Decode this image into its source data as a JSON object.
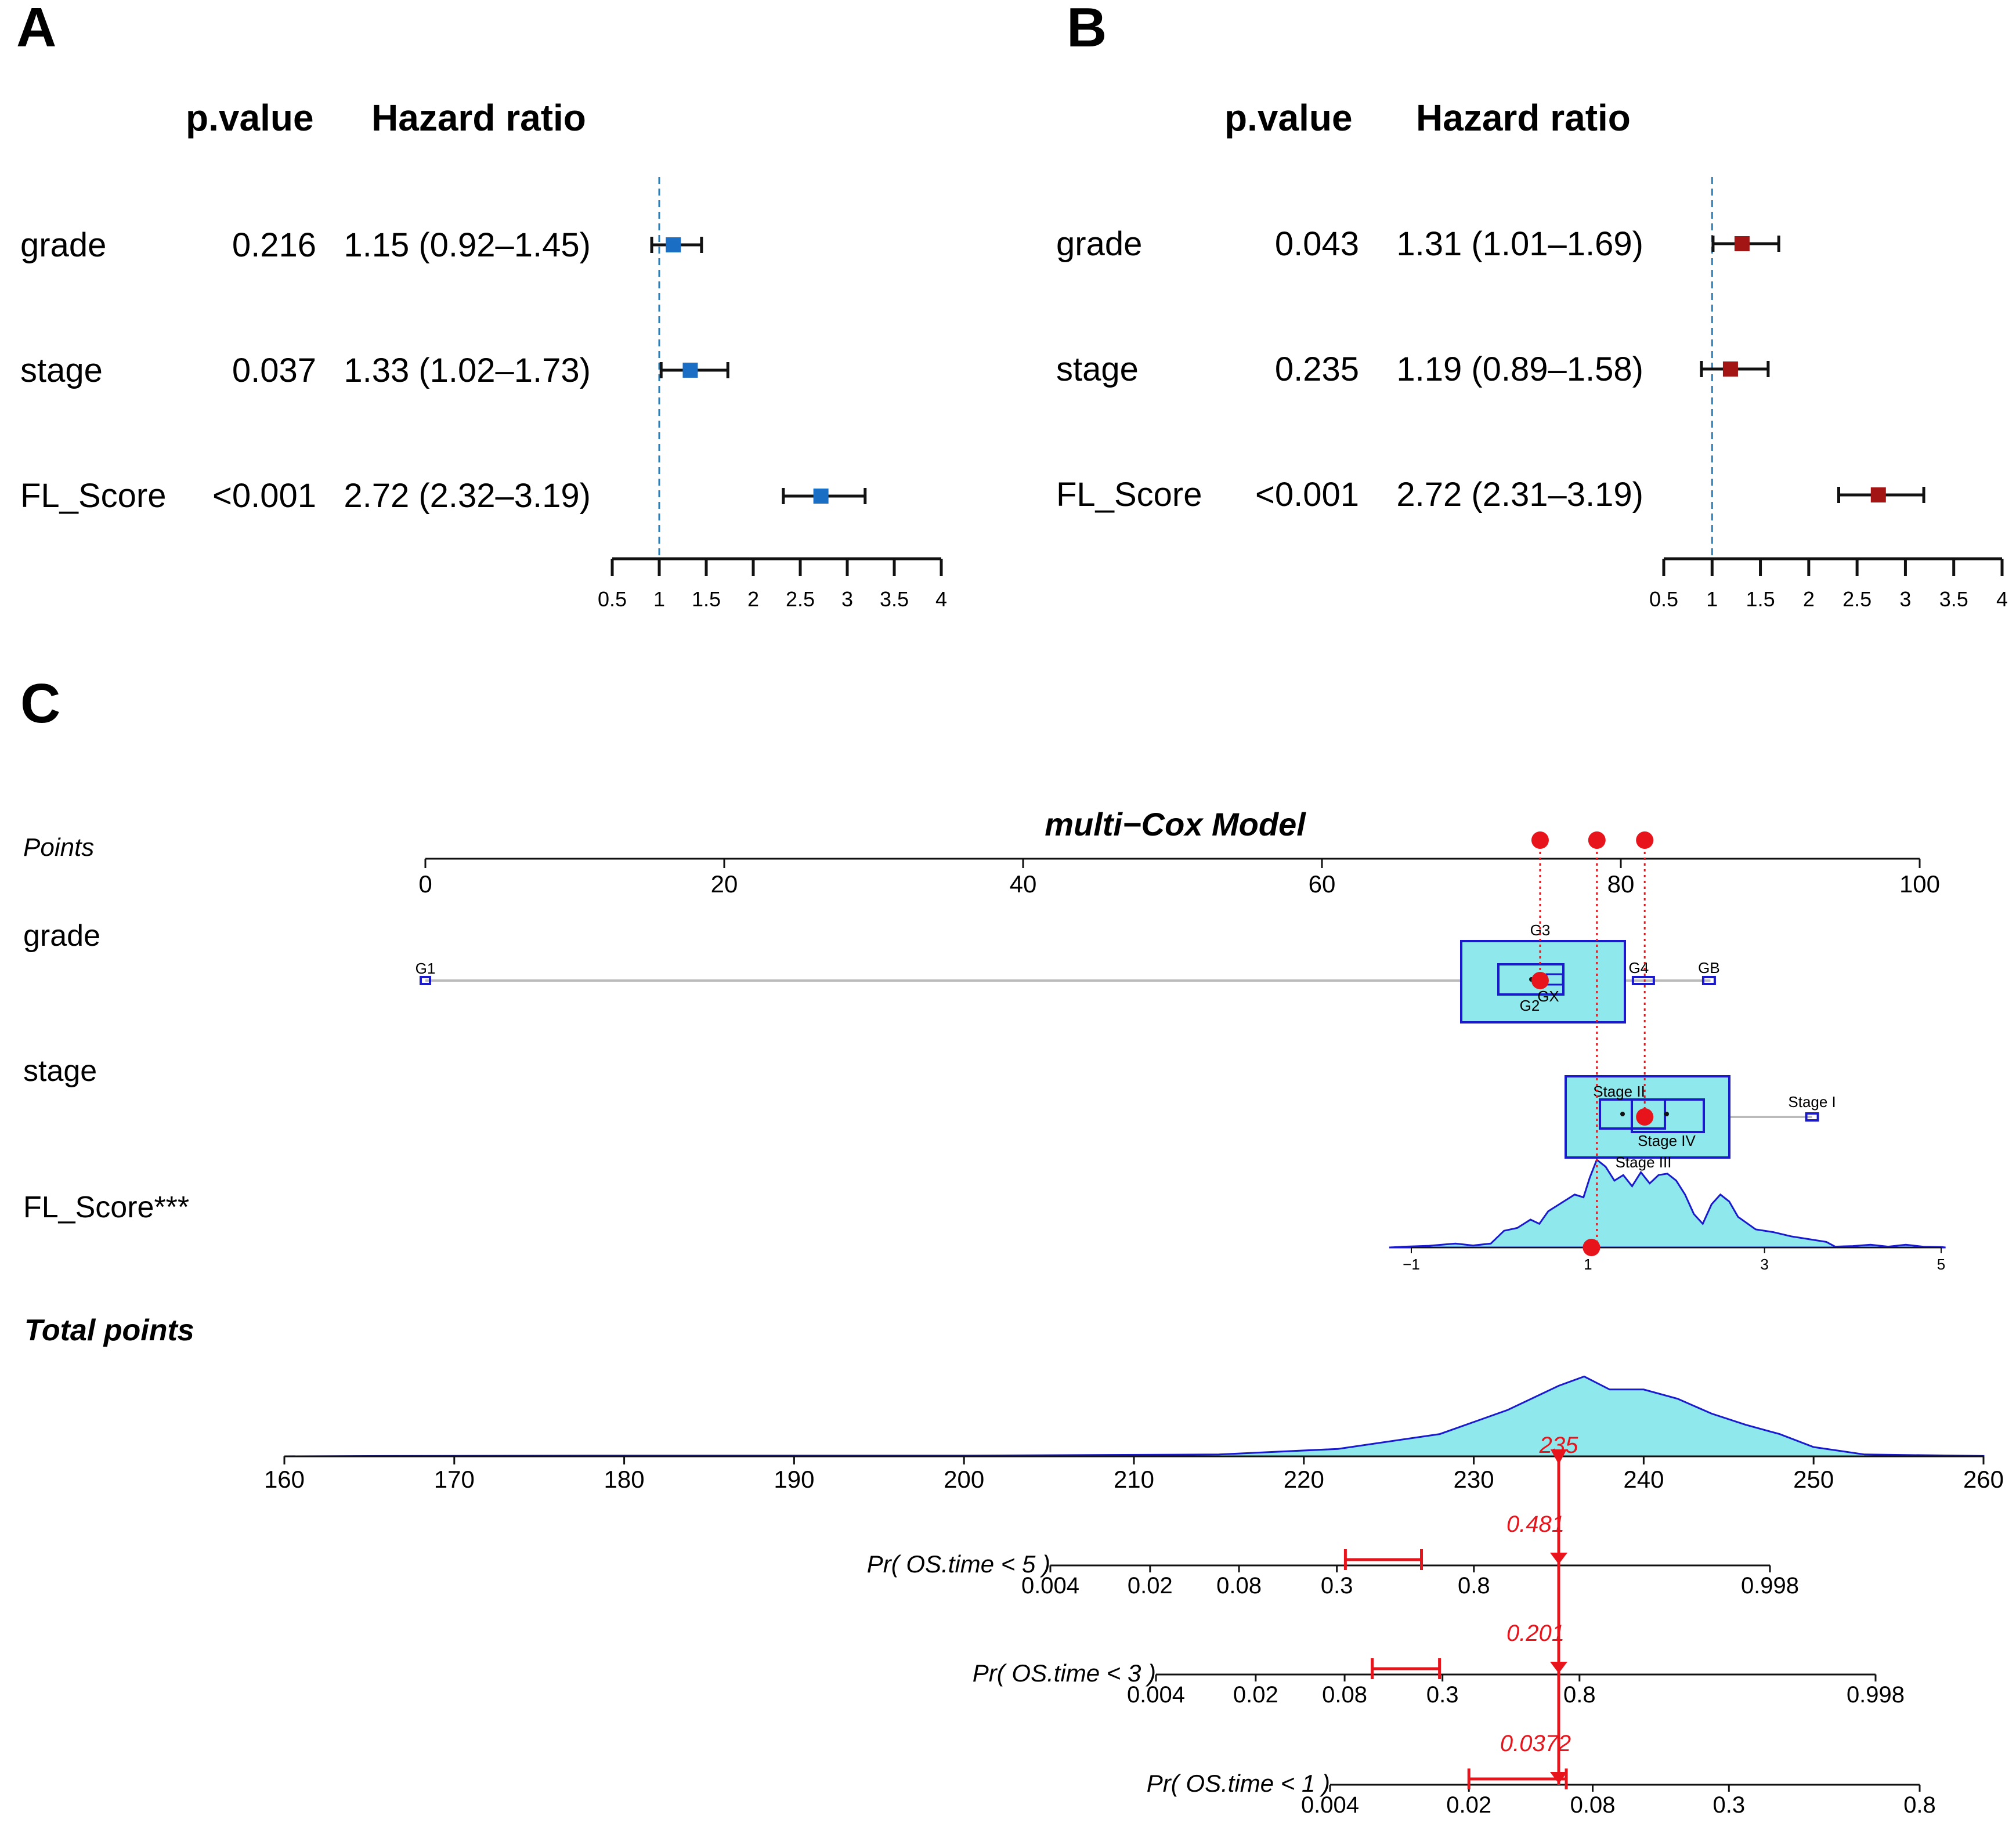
{
  "panel_labels": {
    "a": "A",
    "b": "B",
    "c": "C"
  },
  "colors": {
    "forest_a": "#1a6ec4",
    "forest_b": "#a31515",
    "ref_line": "#2a7fb8",
    "nomo_fill": "#8fe8ec",
    "nomo_stroke": "#1a1acc",
    "highlight": "#e8141c"
  },
  "chart_data": [
    {
      "type": "forest",
      "panel": "A",
      "headers": {
        "pvalue": "p.value",
        "hr": "Hazard ratio"
      },
      "reference_line": 1,
      "xlim": [
        0.5,
        4
      ],
      "ticks": [
        "0.5",
        "1",
        "1.5",
        "2",
        "2.5",
        "3",
        "3.5",
        "4"
      ],
      "rows": [
        {
          "label": "grade",
          "pvalue": "0.216",
          "hr_text": "1.15 (0.92–1.45)",
          "hr": 1.15,
          "lo": 0.92,
          "hi": 1.45
        },
        {
          "label": "stage",
          "pvalue": "0.037",
          "hr_text": "1.33 (1.02–1.73)",
          "hr": 1.33,
          "lo": 1.02,
          "hi": 1.73
        },
        {
          "label": "FL_Score",
          "pvalue": "<0.001",
          "hr_text": "2.72 (2.32–3.19)",
          "hr": 2.72,
          "lo": 2.32,
          "hi": 3.19
        }
      ]
    },
    {
      "type": "forest",
      "panel": "B",
      "headers": {
        "pvalue": "p.value",
        "hr": "Hazard ratio"
      },
      "reference_line": 1,
      "xlim": [
        0.5,
        4
      ],
      "ticks": [
        "0.5",
        "1",
        "1.5",
        "2",
        "2.5",
        "3",
        "3.5",
        "4"
      ],
      "rows": [
        {
          "label": "grade",
          "pvalue": "0.043",
          "hr_text": "1.31 (1.01–1.69)",
          "hr": 1.31,
          "lo": 1.01,
          "hi": 1.69
        },
        {
          "label": "stage",
          "pvalue": "0.235",
          "hr_text": "1.19 (0.89–1.58)",
          "hr": 1.19,
          "lo": 0.89,
          "hi": 1.58
        },
        {
          "label": "FL_Score",
          "pvalue": "<0.001",
          "hr_text": "2.72 (2.31–3.19)",
          "hr": 2.72,
          "lo": 2.31,
          "hi": 3.19
        }
      ]
    },
    {
      "type": "nomogram",
      "panel": "C",
      "title": "multi−Cox Model",
      "points": {
        "label": "Points",
        "range": [
          0,
          100
        ],
        "ticks": [
          0,
          20,
          40,
          60,
          80,
          100
        ],
        "highlighted": [
          74.6,
          78.4,
          81.6
        ]
      },
      "grade": {
        "label": "grade",
        "levels": [
          {
            "name": "G1",
            "points": 0
          },
          {
            "name": "G3",
            "points": 74.6
          },
          {
            "name": "G2",
            "points": 73.8
          },
          {
            "name": "GX",
            "points": 75.3
          },
          {
            "name": "G4",
            "points": 81.2
          },
          {
            "name": "GB",
            "points": 85.9
          }
        ],
        "selected_points": 74.6
      },
      "stage": {
        "label": "stage",
        "levels": [
          {
            "name": "Stage II",
            "points": 79.2
          },
          {
            "name": "Stage IV",
            "points": 82.4
          },
          {
            "name": "Stage III",
            "points": 81.3
          },
          {
            "name": "Stage I",
            "points": 92.8
          }
        ],
        "selected_points": 81.6
      },
      "fl_score": {
        "label": "FL_Score***",
        "ticks": [
          "−1",
          "1",
          "3",
          "5"
        ],
        "range": [
          -1,
          5
        ],
        "selected_value": 1.04,
        "density": [
          [
            -1.1,
            0.5
          ],
          [
            -0.8,
            1.2
          ],
          [
            -0.5,
            2.8
          ],
          [
            -0.3,
            1.4
          ],
          [
            -0.1,
            2.8
          ],
          [
            0.05,
            12
          ],
          [
            0.2,
            14
          ],
          [
            0.35,
            20
          ],
          [
            0.45,
            17
          ],
          [
            0.55,
            26
          ],
          [
            0.65,
            30
          ],
          [
            0.75,
            34
          ],
          [
            0.85,
            38
          ],
          [
            0.95,
            36
          ],
          [
            1.02,
            50
          ],
          [
            1.1,
            63
          ],
          [
            1.2,
            58
          ],
          [
            1.3,
            48
          ],
          [
            1.4,
            52
          ],
          [
            1.5,
            44
          ],
          [
            1.6,
            54
          ],
          [
            1.7,
            46
          ],
          [
            1.8,
            52
          ],
          [
            1.9,
            53
          ],
          [
            2.0,
            48
          ],
          [
            2.1,
            38
          ],
          [
            2.2,
            24
          ],
          [
            2.3,
            17
          ],
          [
            2.4,
            31
          ],
          [
            2.5,
            38
          ],
          [
            2.6,
            33
          ],
          [
            2.7,
            22
          ],
          [
            2.9,
            13
          ],
          [
            3.1,
            11
          ],
          [
            3.3,
            8
          ],
          [
            3.5,
            6
          ],
          [
            3.7,
            4
          ],
          [
            3.8,
            0.6
          ],
          [
            4.0,
            1
          ],
          [
            4.2,
            2
          ],
          [
            4.4,
            0.6
          ],
          [
            4.6,
            2
          ],
          [
            4.8,
            0.5
          ],
          [
            5.0,
            0.3
          ]
        ]
      },
      "total_points": {
        "label": "Total points",
        "range": [
          160,
          260
        ],
        "ticks": [
          160,
          170,
          180,
          190,
          200,
          210,
          220,
          230,
          240,
          250,
          260
        ],
        "selected": 235,
        "selected_label": "235",
        "density": [
          [
            166,
            0.2
          ],
          [
            180,
            0.4
          ],
          [
            200,
            0.4
          ],
          [
            215,
            1
          ],
          [
            222,
            4
          ],
          [
            228,
            12
          ],
          [
            232,
            25
          ],
          [
            235,
            38
          ],
          [
            236.5,
            43
          ],
          [
            238,
            36
          ],
          [
            240,
            36
          ],
          [
            242,
            31
          ],
          [
            244,
            23
          ],
          [
            246,
            17
          ],
          [
            248,
            12
          ],
          [
            250,
            5
          ],
          [
            253,
            1
          ],
          [
            260,
            0.2
          ]
        ]
      },
      "probabilities": [
        {
          "label": "Pr( OS.time < 5 )",
          "ticks": [
            "0.004",
            "0.02",
            "0.08",
            "0.3",
            "0.8",
            "0.998"
          ],
          "tick_values": [
            0.004,
            0.02,
            0.08,
            0.3,
            0.8,
            0.998
          ],
          "value": 0.481,
          "value_label": "0.481",
          "ci": [
            0.33,
            0.63
          ]
        },
        {
          "label": "Pr( OS.time < 3 )",
          "ticks": [
            "0.004",
            "0.02",
            "0.08",
            "0.3",
            "0.8",
            "0.998"
          ],
          "tick_values": [
            0.004,
            0.02,
            0.08,
            0.3,
            0.8,
            0.998
          ],
          "value": 0.201,
          "value_label": "0.201",
          "ci": [
            0.12,
            0.29
          ]
        },
        {
          "label": "Pr( OS.time < 1 )",
          "ticks": [
            "0.004",
            "0.02",
            "0.08",
            "0.3",
            "0.8"
          ],
          "tick_values": [
            0.004,
            0.02,
            0.08,
            0.3,
            0.8
          ],
          "value": 0.0372,
          "value_label": "0.0372",
          "ci": [
            0.02,
            0.06
          ]
        }
      ]
    }
  ]
}
